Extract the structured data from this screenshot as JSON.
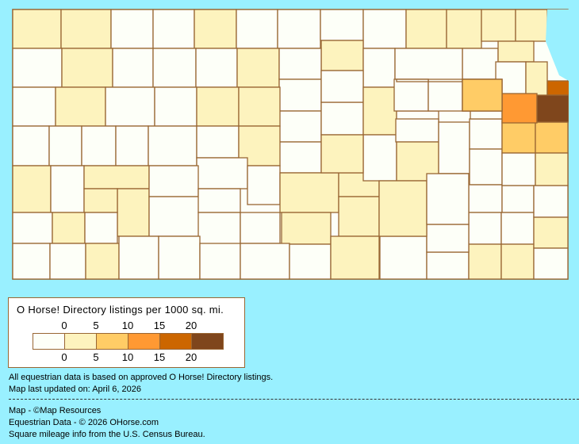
{
  "map": {
    "state": "Kansas",
    "colors": {
      "background": "#99F0FF",
      "border": "#996633",
      "levels": [
        "#FDFFF8",
        "#FDF3BE",
        "#FFCC66",
        "#FF9933",
        "#CC6600",
        "#7F461C"
      ]
    },
    "county_levels": [
      1,
      1,
      0,
      0,
      1,
      0,
      0,
      0,
      0,
      1,
      1,
      1,
      1,
      1,
      0,
      0,
      1,
      0,
      0,
      0,
      1,
      0,
      0,
      0,
      0,
      0,
      1,
      0,
      0,
      1,
      0,
      0,
      1,
      1,
      0,
      0,
      0,
      0,
      0,
      0,
      0,
      0,
      0,
      1,
      0,
      0,
      1,
      0,
      0,
      0,
      1,
      0,
      1,
      1,
      1,
      0,
      0,
      0,
      1,
      1,
      1,
      0,
      1,
      0,
      0,
      0,
      1,
      0,
      0,
      1,
      0,
      0,
      0,
      0,
      0,
      1,
      0,
      0,
      1,
      1,
      0,
      2,
      0,
      0,
      0,
      0,
      0,
      0,
      0,
      2,
      2,
      0,
      0,
      0,
      1,
      1,
      0,
      0,
      1,
      3,
      2,
      4,
      5,
      2,
      0,
      1,
      0,
      0,
      1,
      1,
      0
    ]
  },
  "legend": {
    "title": "O Horse! Directory listings per 1000 sq. mi.",
    "ticks_top": [
      "0",
      "5",
      "10",
      "15",
      "20"
    ],
    "ticks_bottom": [
      "0",
      "5",
      "10",
      "15",
      "20"
    ],
    "bins": [
      "0",
      "0-5",
      "5-10",
      "10-15",
      "15-20",
      "20+"
    ]
  },
  "notes": {
    "line1": "All equestrian data is based on approved O Horse! Directory listings.",
    "line2": "Map last updated on: April 6, 2026",
    "credit1": "Map - ©Map Resources",
    "credit2": "Equestrian Data - © 2026 OHorse.com",
    "credit3": "Square mileage info from the U.S. Census Bureau."
  }
}
